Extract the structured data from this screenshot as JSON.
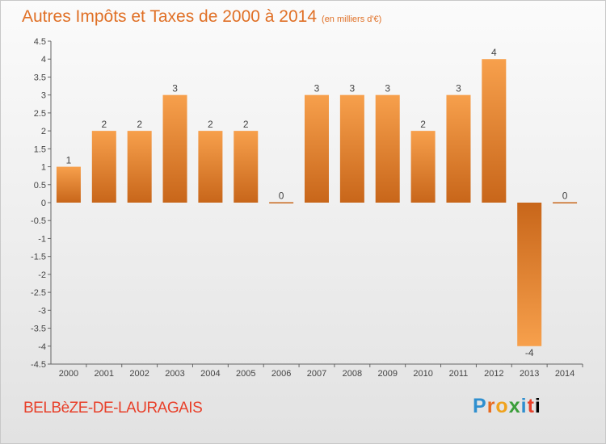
{
  "header": {
    "title": "Autres Impôts et Taxes de 2000 à 2014",
    "unit": "(en milliers d'€)"
  },
  "footer": {
    "commune": "BELBèZE-DE-LAURAGAIS",
    "logo_letters": [
      "P",
      "r",
      "o",
      "x",
      "i",
      "t",
      "i"
    ]
  },
  "colors": {
    "title": "#e07026",
    "bar_light": "#f7a04c",
    "bar_dark": "#c8661a",
    "commune": "#e8402a"
  },
  "chart_data": {
    "type": "bar",
    "categories": [
      "2000",
      "2001",
      "2002",
      "2003",
      "2004",
      "2005",
      "2006",
      "2007",
      "2008",
      "2009",
      "2010",
      "2011",
      "2012",
      "2013",
      "2014"
    ],
    "values": [
      1,
      2,
      2,
      3,
      2,
      2,
      0,
      3,
      3,
      3,
      2,
      3,
      4,
      -4,
      0
    ],
    "data_labels": [
      "1",
      "2",
      "2",
      "3",
      "2",
      "2",
      "0",
      "3",
      "3",
      "3",
      "2",
      "3",
      "4",
      "-4",
      "0"
    ],
    "y_ticks": [
      "4.5",
      "4",
      "3.5",
      "3",
      "2.5",
      "2",
      "1.5",
      "1",
      "0.5",
      "0",
      "-0.5",
      "-1",
      "-1.5",
      "-2",
      "-2.5",
      "-3",
      "-3.5",
      "-4",
      "-4.5"
    ],
    "ylim": [
      -4.5,
      4.5
    ],
    "grid": false,
    "legend": "none"
  }
}
